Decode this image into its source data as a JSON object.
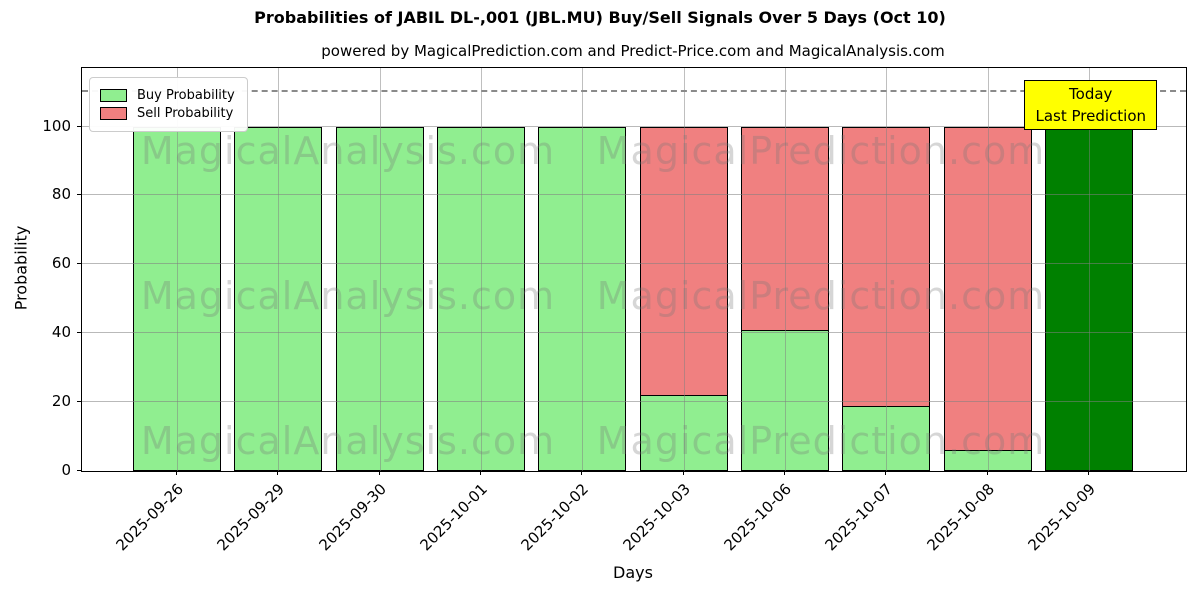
{
  "title": "Probabilities of JABIL DL-,001 (JBL.MU) Buy/Sell Signals Over 5 Days (Oct 10)",
  "subtitle": "powered by MagicalPrediction.com and Predict-Price.com and MagicalAnalysis.com",
  "axes": {
    "xlabel": "Days",
    "ylabel": "Probability",
    "yticks": [
      0,
      20,
      40,
      60,
      80,
      100
    ],
    "ymax": 117,
    "dashed_line_y": 110,
    "grid": "both"
  },
  "legend": {
    "items": [
      {
        "label": "Buy Probability",
        "color": "#90ee90"
      },
      {
        "label": "Sell Probability",
        "color": "#f08080"
      }
    ]
  },
  "annotation": {
    "line1": "Today",
    "line2": "Last Prediction",
    "bg_color": "#ffff00"
  },
  "watermarks": {
    "left_text": "MagicalAnalysis.com",
    "right_text": "MagicalPrediction.com"
  },
  "chart_data": {
    "type": "bar",
    "stacked": true,
    "title": "Probabilities of JABIL DL-,001 (JBL.MU) Buy/Sell Signals Over 5 Days (Oct 10)",
    "xlabel": "Days",
    "ylabel": "Probability",
    "ylim": [
      0,
      117
    ],
    "grid": "on",
    "legend_position": "upper left",
    "categories": [
      "2025-09-26",
      "2025-09-29",
      "2025-09-30",
      "2025-10-01",
      "2025-10-02",
      "2025-10-03",
      "2025-10-06",
      "2025-10-07",
      "2025-10-08",
      "2025-10-09"
    ],
    "series": [
      {
        "name": "Buy Probability",
        "color": "#90ee90",
        "values": [
          100,
          100,
          100,
          100,
          100,
          22,
          41,
          19,
          6,
          100
        ]
      },
      {
        "name": "Sell Probability",
        "color": "#f08080",
        "values": [
          0,
          0,
          0,
          0,
          0,
          78,
          59,
          81,
          94,
          0
        ]
      }
    ],
    "today_index": 9,
    "today_color": "#008000",
    "bar_edge_color": "#000000",
    "dashed_threshold": 110
  }
}
